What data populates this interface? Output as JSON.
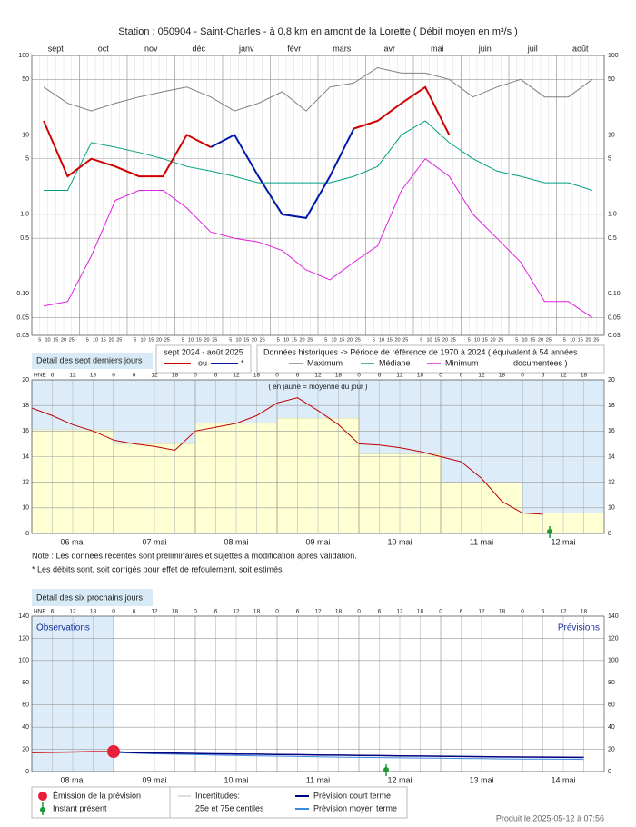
{
  "title": "Station : 050904     -   Saint-Charles - à 0,8 km en amont de la Lorette   ( Débit moyen en m³/s )",
  "notes": [
    "Note : Les données récentes sont préliminaires et sujettes à modification après validation.",
    "* Les débits sont, soit corrigés pour effet de refoulement, soit estimés."
  ],
  "produced": "Produit le 2025-05-12 à 07:56",
  "chart_data": [
    {
      "type": "line",
      "log_scale": true,
      "grid": true,
      "categories": [
        "sept",
        null,
        "oct",
        null,
        "nov",
        null,
        "déc",
        null,
        "janv",
        null,
        "févr",
        null,
        "mars",
        null,
        "avr",
        null,
        "mai",
        null,
        "juin",
        null,
        "juil",
        null,
        "août",
        null
      ],
      "day_ticks": [
        5,
        10,
        15,
        20,
        25
      ],
      "ylim": [
        0.03,
        100
      ],
      "yticks": [
        0.03,
        0.05,
        {
          "value": 0.1,
          "label": "0.10"
        },
        0.5,
        {
          "value": 1,
          "label": "1.0"
        },
        5,
        10,
        50,
        100
      ],
      "section": "Détail des sept derniers jours",
      "legend_title": "sept 2024 - août 2025",
      "legend_or": "ou",
      "historical_note": "Données historiques -> Période de référence  de 1970 à 2024   ( équivalent à 54 années",
      "historical_note_end": "documentées )",
      "series": [
        {
          "name": "Maximum",
          "color": "#808080",
          "values": [
            40,
            25,
            20,
            25,
            30,
            35,
            40,
            30,
            20,
            25,
            35,
            20,
            40,
            45,
            70,
            60,
            60,
            50,
            30,
            40,
            50,
            30,
            30,
            50
          ]
        },
        {
          "name": "Médiane",
          "color": "#00a080",
          "values": [
            2,
            2,
            8,
            7,
            6,
            5,
            4,
            3.5,
            3,
            2.5,
            2.5,
            2.5,
            2.5,
            3,
            4,
            10,
            15,
            8,
            5,
            3.5,
            3,
            2.5,
            2.5,
            2
          ]
        },
        {
          "name": "Minimum",
          "color": "#e020e0",
          "values": [
            0.07,
            0.08,
            0.3,
            1.5,
            2,
            2,
            1.2,
            0.6,
            0.5,
            0.45,
            0.35,
            0.2,
            0.15,
            0.25,
            0.4,
            2,
            5,
            3,
            1,
            0.5,
            0.25,
            0.08,
            0.08,
            0.05
          ]
        },
        {
          "color": "#d00000",
          "values": [
            15,
            3,
            5,
            4,
            3,
            3,
            10,
            7,
            null,
            null,
            null,
            null,
            null,
            12,
            15,
            25,
            40,
            10,
            null,
            null,
            null,
            null,
            null,
            null
          ]
        },
        {
          "name": "*",
          "color": "#0018a8",
          "values": [
            null,
            null,
            null,
            null,
            null,
            null,
            null,
            7,
            10,
            3,
            1,
            0.9,
            3,
            12,
            null,
            null,
            null,
            null,
            null,
            null,
            null,
            null,
            null,
            null
          ]
        }
      ]
    },
    {
      "type": "line",
      "hour_label": "HNE",
      "hour_ticks": [
        0,
        6,
        12,
        18
      ],
      "categories": [
        null,
        null,
        "06 mai",
        null,
        null,
        null,
        "07 mai",
        null,
        null,
        null,
        "08 mai",
        null,
        null,
        null,
        "09 mai",
        null,
        null,
        null,
        "10 mai",
        null,
        null,
        null,
        "11 mai",
        null,
        null,
        null,
        "12 mai",
        null
      ],
      "ylim": [
        8,
        20
      ],
      "yticks": [
        8,
        10,
        12,
        14,
        16,
        18,
        20
      ],
      "annotation": "( en jaune = moyenne du jour )",
      "series": [
        {
          "color": "#c00000",
          "values": [
            17.8,
            17.2,
            16.5,
            16.0,
            15.3,
            15.0,
            14.8,
            14.5,
            16.0,
            16.3,
            16.6,
            17.2,
            18.2,
            18.6,
            17.6,
            16.5,
            15.0,
            14.9,
            14.7,
            14.4,
            14.0,
            13.6,
            12.3,
            10.5,
            9.6,
            9.5,
            null,
            null
          ]
        }
      ],
      "daily_mean": {
        "color": "#ffffd4",
        "values": [
          16.1,
          15.0,
          16.6,
          17.0,
          14.2,
          12.0,
          9.6
        ]
      }
    },
    {
      "type": "line",
      "section": "Détail des six prochains jours",
      "hour_label": "HNE",
      "hour_ticks": [
        0,
        6,
        12,
        18
      ],
      "categories": [
        null,
        null,
        "08 mai",
        null,
        null,
        null,
        "09 mai",
        null,
        null,
        null,
        "10 mai",
        null,
        null,
        null,
        "11 mai",
        null,
        null,
        null,
        "12 mai",
        null,
        null,
        null,
        "13 mai",
        null,
        null,
        null,
        "14 mai",
        null
      ],
      "ylim": [
        0,
        140
      ],
      "yticks": [
        0,
        20,
        40,
        60,
        80,
        100,
        120,
        140
      ],
      "label_left": "Observations",
      "label_right": "Prévisions",
      "legend_emission": "Émission de la prévision",
      "legend_present": "Instant présent",
      "legend_uncert": "Incertitudes:",
      "legend_uncert2": "25e et 75e centiles",
      "series": [
        {
          "color": "#d02020",
          "values": [
            17,
            17.3,
            17.6,
            18,
            18,
            null,
            null,
            null,
            null,
            null,
            null,
            null,
            null,
            null,
            null,
            null,
            null,
            null,
            null,
            null,
            null,
            null,
            null,
            null,
            null,
            null,
            null,
            null
          ]
        },
        {
          "name": "Prévision court terme",
          "color": "#000080",
          "values": [
            null,
            null,
            null,
            null,
            18,
            17,
            16.8,
            16.5,
            16.3,
            16,
            15.8,
            15.6,
            15.4,
            15.2,
            15,
            14.8,
            14.6,
            14.4,
            14.2,
            14,
            13.8,
            13.6,
            13.4,
            13.2,
            13.1,
            13,
            12.9,
            12.8
          ]
        },
        {
          "name": "Prévision moyen terme",
          "color": "#3a8ae0",
          "values": [
            null,
            null,
            null,
            null,
            17,
            16.5,
            16,
            15.6,
            15.2,
            14.8,
            14.5,
            14.2,
            13.9,
            13.6,
            13.3,
            13,
            12.8,
            12.6,
            12.4,
            12.2,
            12,
            11.8,
            11.6,
            11.4,
            11.3,
            11.2,
            11.1,
            11
          ]
        }
      ]
    }
  ]
}
